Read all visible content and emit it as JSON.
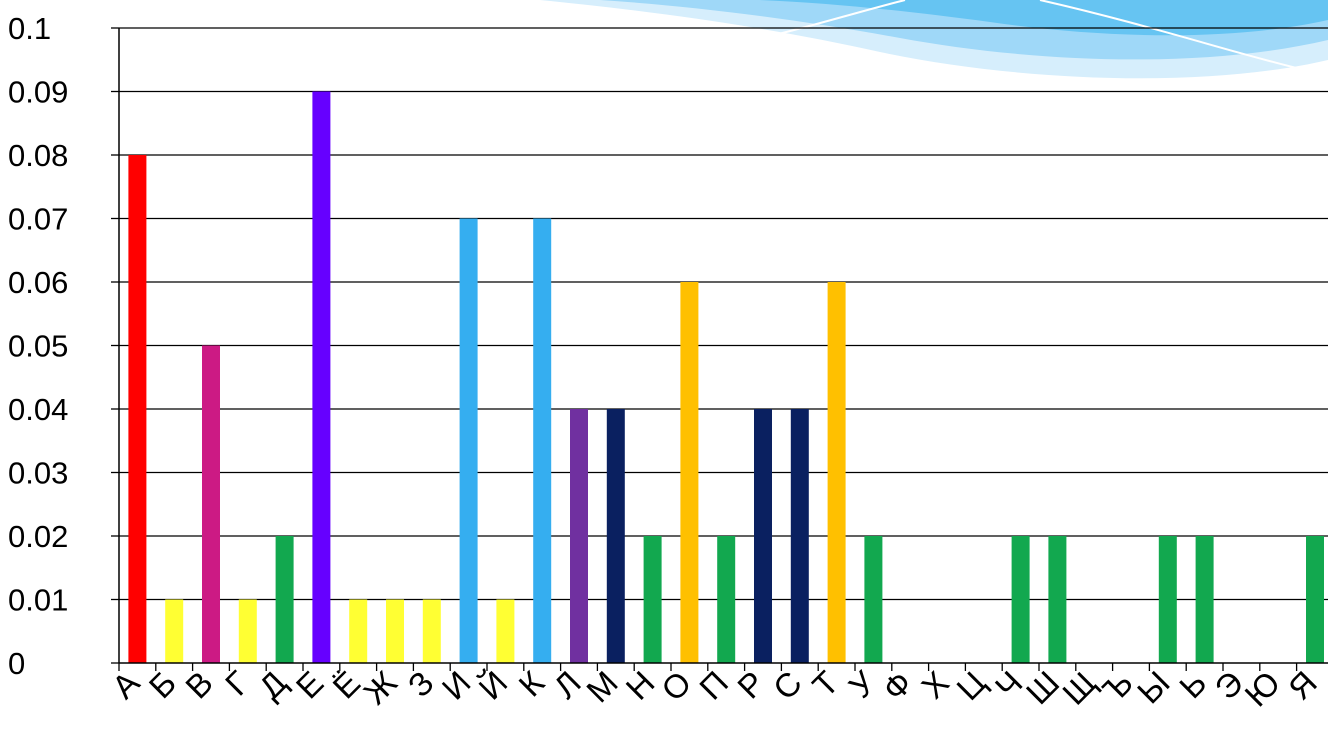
{
  "chart_data": {
    "type": "bar",
    "categories": [
      "А",
      "Б",
      "В",
      "Г",
      "Д",
      "Е",
      "Ё",
      "Ж",
      "З",
      "И",
      "Й",
      "К",
      "Л",
      "М",
      "Н",
      "О",
      "П",
      "Р",
      "С",
      "Т",
      "У",
      "Ф",
      "Х",
      "Ц",
      "Ч",
      "Ш",
      "Щ",
      "Ъ",
      "Ы",
      "Ь",
      "Э",
      "Ю",
      "Я"
    ],
    "values": [
      0.08,
      0.01,
      0.05,
      0.01,
      0.02,
      0.09,
      0.01,
      0.01,
      0.01,
      0.07,
      0.01,
      0.07,
      0.04,
      0.04,
      0.02,
      0.06,
      0.02,
      0.04,
      0.04,
      0.06,
      0.02,
      0,
      0,
      0,
      0.02,
      0.02,
      0,
      0,
      0.02,
      0.02,
      0,
      0,
      0.02
    ],
    "bar_colors": [
      "#ff0000",
      "#ffff33",
      "#cc1a84",
      "#ffff33",
      "#12a84f",
      "#6600ff",
      "#ffff33",
      "#ffff33",
      "#ffff33",
      "#35aef0",
      "#ffff33",
      "#35aef0",
      "#7030a0",
      "#0a2060",
      "#12a84f",
      "#ffc000",
      "#12a84f",
      "#0a2060",
      "#0a2060",
      "#ffc000",
      "#12a84f",
      "#12a84f",
      "#12a84f",
      "#12a84f",
      "#12a84f",
      "#12a84f",
      "#12a84f",
      "#12a84f",
      "#12a84f",
      "#12a84f",
      "#12a84f",
      "#12a84f",
      "#12a84f"
    ],
    "y_ticks": [
      "0",
      "0.01",
      "0.02",
      "0.03",
      "0.04",
      "0.05",
      "0.06",
      "0.07",
      "0.08",
      "0.09",
      "0.1"
    ],
    "ylim": [
      0,
      0.1
    ],
    "grid": true,
    "legend": "none",
    "title": "",
    "xlabel": "",
    "ylabel": ""
  },
  "colors": {
    "grid_line": "#000000",
    "banner_light": "#c9e7fb",
    "banner_mid": "#8fd0f6",
    "banner_dark": "#5cbdf0"
  }
}
